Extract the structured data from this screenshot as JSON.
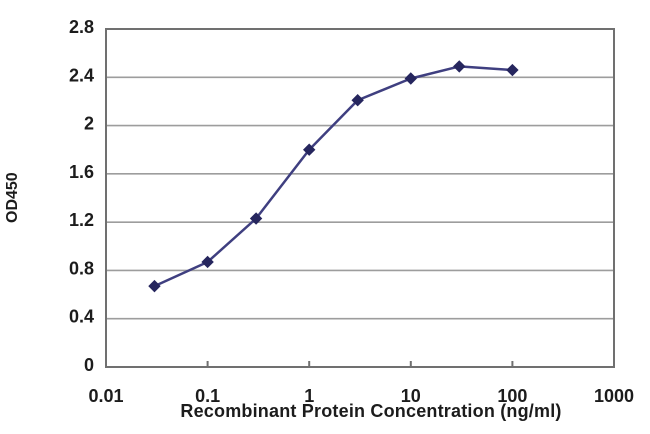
{
  "chart_data": {
    "type": "line",
    "title": "",
    "xlabel": "Recombinant Protein Concentration (ng/ml)",
    "ylabel": "OD450",
    "x_scale": "log",
    "xlim": [
      0.01,
      1000
    ],
    "ylim": [
      0,
      2.8
    ],
    "x_ticks": [
      0.01,
      0.1,
      1,
      10,
      100,
      1000
    ],
    "x_tick_labels": [
      "0.01",
      "0.1",
      "1",
      "10",
      "100",
      "1000"
    ],
    "y_ticks": [
      0,
      0.4,
      0.8,
      1.2,
      1.6,
      2,
      2.4,
      2.8
    ],
    "y_tick_labels": [
      "0",
      "0.4",
      "0.8",
      "1.2",
      "1.6",
      "2",
      "2.4",
      "2.8"
    ],
    "grid": "horizontal",
    "legend": "none",
    "series": [
      {
        "name": "OD450",
        "marker": "diamond",
        "x": [
          0.03,
          0.1,
          0.3,
          1,
          3,
          10,
          30,
          100
        ],
        "y": [
          0.67,
          0.87,
          1.23,
          1.8,
          2.21,
          2.39,
          2.49,
          2.46
        ]
      }
    ]
  },
  "colors": {
    "background": "#ffffff",
    "plot_border": "#707070",
    "gridline": "#9d9d9d",
    "text": "#1c1c1c",
    "line": "#3f3f80",
    "marker": "#26265e"
  }
}
